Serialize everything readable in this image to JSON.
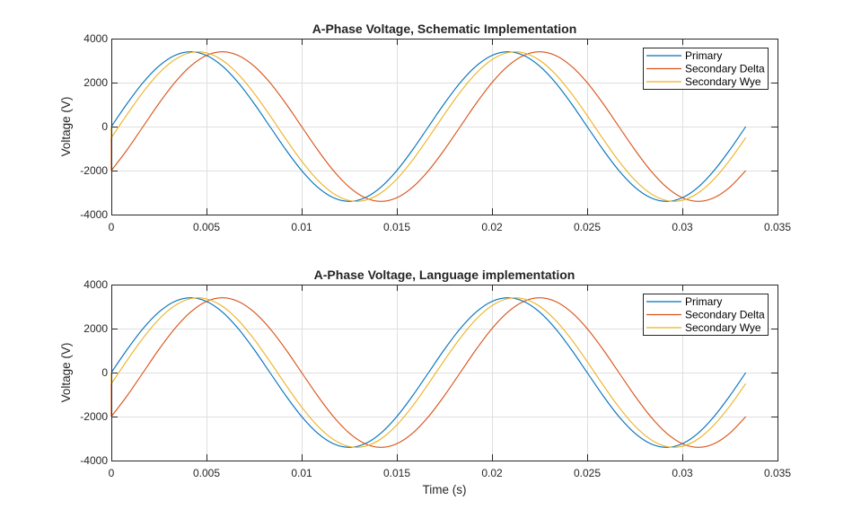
{
  "colors": {
    "primary": "#0072BD",
    "secondary_delta": "#D95319",
    "secondary_wye": "#EDB120",
    "axis": "#262626",
    "grid": "#dfdfdf"
  },
  "chart_data": [
    {
      "type": "line",
      "title": "A-Phase Voltage, Schematic Implementation",
      "xlabel": "",
      "ylabel": "Voltage (V)",
      "xlim": [
        0,
        0.035
      ],
      "ylim": [
        -4000,
        4000
      ],
      "xticks": [
        0,
        0.005,
        0.01,
        0.015,
        0.02,
        0.025,
        0.03,
        0.035
      ],
      "xtick_labels": [
        "0",
        "0.005",
        "0.01",
        "0.015",
        "0.02",
        "0.025",
        "0.03",
        "0.035"
      ],
      "yticks": [
        -4000,
        -2000,
        0,
        2000,
        4000
      ],
      "ytick_labels": [
        "-4000",
        "-2000",
        "0",
        "2000",
        "4000"
      ],
      "grid": true,
      "legend": "top-right",
      "x_step": 0.000833333,
      "series": [
        {
          "name": "Primary",
          "color_key": "primary",
          "prepend": [],
          "values": [
            0,
            1051,
            1999,
            2751,
            3234,
            3400,
            3234,
            2751,
            1999,
            1051,
            0,
            -1051,
            -1999,
            -2751,
            -3234,
            -3400,
            -3234,
            -2751,
            -1999,
            -1051,
            0,
            1051,
            1999,
            2751,
            3234,
            3400,
            3234,
            2751,
            1999,
            1051,
            0,
            -1051,
            -1999,
            -2751,
            -3234,
            -3400,
            -3234,
            -2751,
            -1999,
            -1051,
            0
          ]
        },
        {
          "name": "Secondary Delta",
          "color_key": "secondary_delta",
          "prepend": [
            0
          ],
          "values": [
            -1999,
            -1051,
            0,
            1051,
            1999,
            2751,
            3234,
            3400,
            3234,
            2751,
            1999,
            1051,
            0,
            -1051,
            -1999,
            -2751,
            -3234,
            -3400,
            -3234,
            -2751,
            -1999,
            -1051,
            0,
            1051,
            1999,
            2751,
            3234,
            3400,
            3234,
            2751,
            1999,
            1051,
            0,
            -1051,
            -1999,
            -2751,
            -3234,
            -3400,
            -3234,
            -2751,
            -1999
          ]
        },
        {
          "name": "Secondary Wye",
          "color_key": "secondary_wye",
          "prepend": [
            0
          ],
          "values": [
            -503,
            561,
            1570,
            2425,
            3043,
            3363,
            3353,
            3016,
            2383,
            1517,
            503,
            -561,
            -1570,
            -2425,
            -3043,
            -3363,
            -3353,
            -3016,
            -2383,
            -1517,
            -503,
            561,
            1570,
            2425,
            3043,
            3363,
            3353,
            3016,
            2383,
            1517,
            503,
            -561,
            -1570,
            -2425,
            -3043,
            -3363,
            -3353,
            -3016,
            -2383,
            -1517,
            -503
          ]
        }
      ]
    },
    {
      "type": "line",
      "title": "A-Phase Voltage, Language implementation",
      "xlabel": "Time (s)",
      "ylabel": "Voltage (V)",
      "xlim": [
        0,
        0.035
      ],
      "ylim": [
        -4000,
        4000
      ],
      "xticks": [
        0,
        0.005,
        0.01,
        0.015,
        0.02,
        0.025,
        0.03,
        0.035
      ],
      "xtick_labels": [
        "0",
        "0.005",
        "0.01",
        "0.015",
        "0.02",
        "0.025",
        "0.03",
        "0.035"
      ],
      "yticks": [
        -4000,
        -2000,
        0,
        2000,
        4000
      ],
      "ytick_labels": [
        "-4000",
        "-2000",
        "0",
        "2000",
        "4000"
      ],
      "grid": true,
      "legend": "top-right",
      "x_step": 0.000833333,
      "series": [
        {
          "name": "Primary",
          "color_key": "primary",
          "prepend": [],
          "values": [
            0,
            1051,
            1999,
            2751,
            3234,
            3400,
            3234,
            2751,
            1999,
            1051,
            0,
            -1051,
            -1999,
            -2751,
            -3234,
            -3400,
            -3234,
            -2751,
            -1999,
            -1051,
            0,
            1051,
            1999,
            2751,
            3234,
            3400,
            3234,
            2751,
            1999,
            1051,
            0,
            -1051,
            -1999,
            -2751,
            -3234,
            -3400,
            -3234,
            -2751,
            -1999,
            -1051,
            0
          ]
        },
        {
          "name": "Secondary Delta",
          "color_key": "secondary_delta",
          "prepend": [
            0
          ],
          "values": [
            -1999,
            -1051,
            0,
            1051,
            1999,
            2751,
            3234,
            3400,
            3234,
            2751,
            1999,
            1051,
            0,
            -1051,
            -1999,
            -2751,
            -3234,
            -3400,
            -3234,
            -2751,
            -1999,
            -1051,
            0,
            1051,
            1999,
            2751,
            3234,
            3400,
            3234,
            2751,
            1999,
            1051,
            0,
            -1051,
            -1999,
            -2751,
            -3234,
            -3400,
            -3234,
            -2751,
            -1999
          ]
        },
        {
          "name": "Secondary Wye",
          "color_key": "secondary_wye",
          "prepend": [
            0
          ],
          "values": [
            -503,
            561,
            1570,
            2425,
            3043,
            3363,
            3353,
            3016,
            2383,
            1517,
            503,
            -561,
            -1570,
            -2425,
            -3043,
            -3363,
            -3353,
            -3016,
            -2383,
            -1517,
            -503,
            561,
            1570,
            2425,
            3043,
            3363,
            3353,
            3016,
            2383,
            1517,
            503,
            -561,
            -1570,
            -2425,
            -3043,
            -3363,
            -3353,
            -3016,
            -2383,
            -1517,
            -503
          ]
        }
      ]
    }
  ]
}
